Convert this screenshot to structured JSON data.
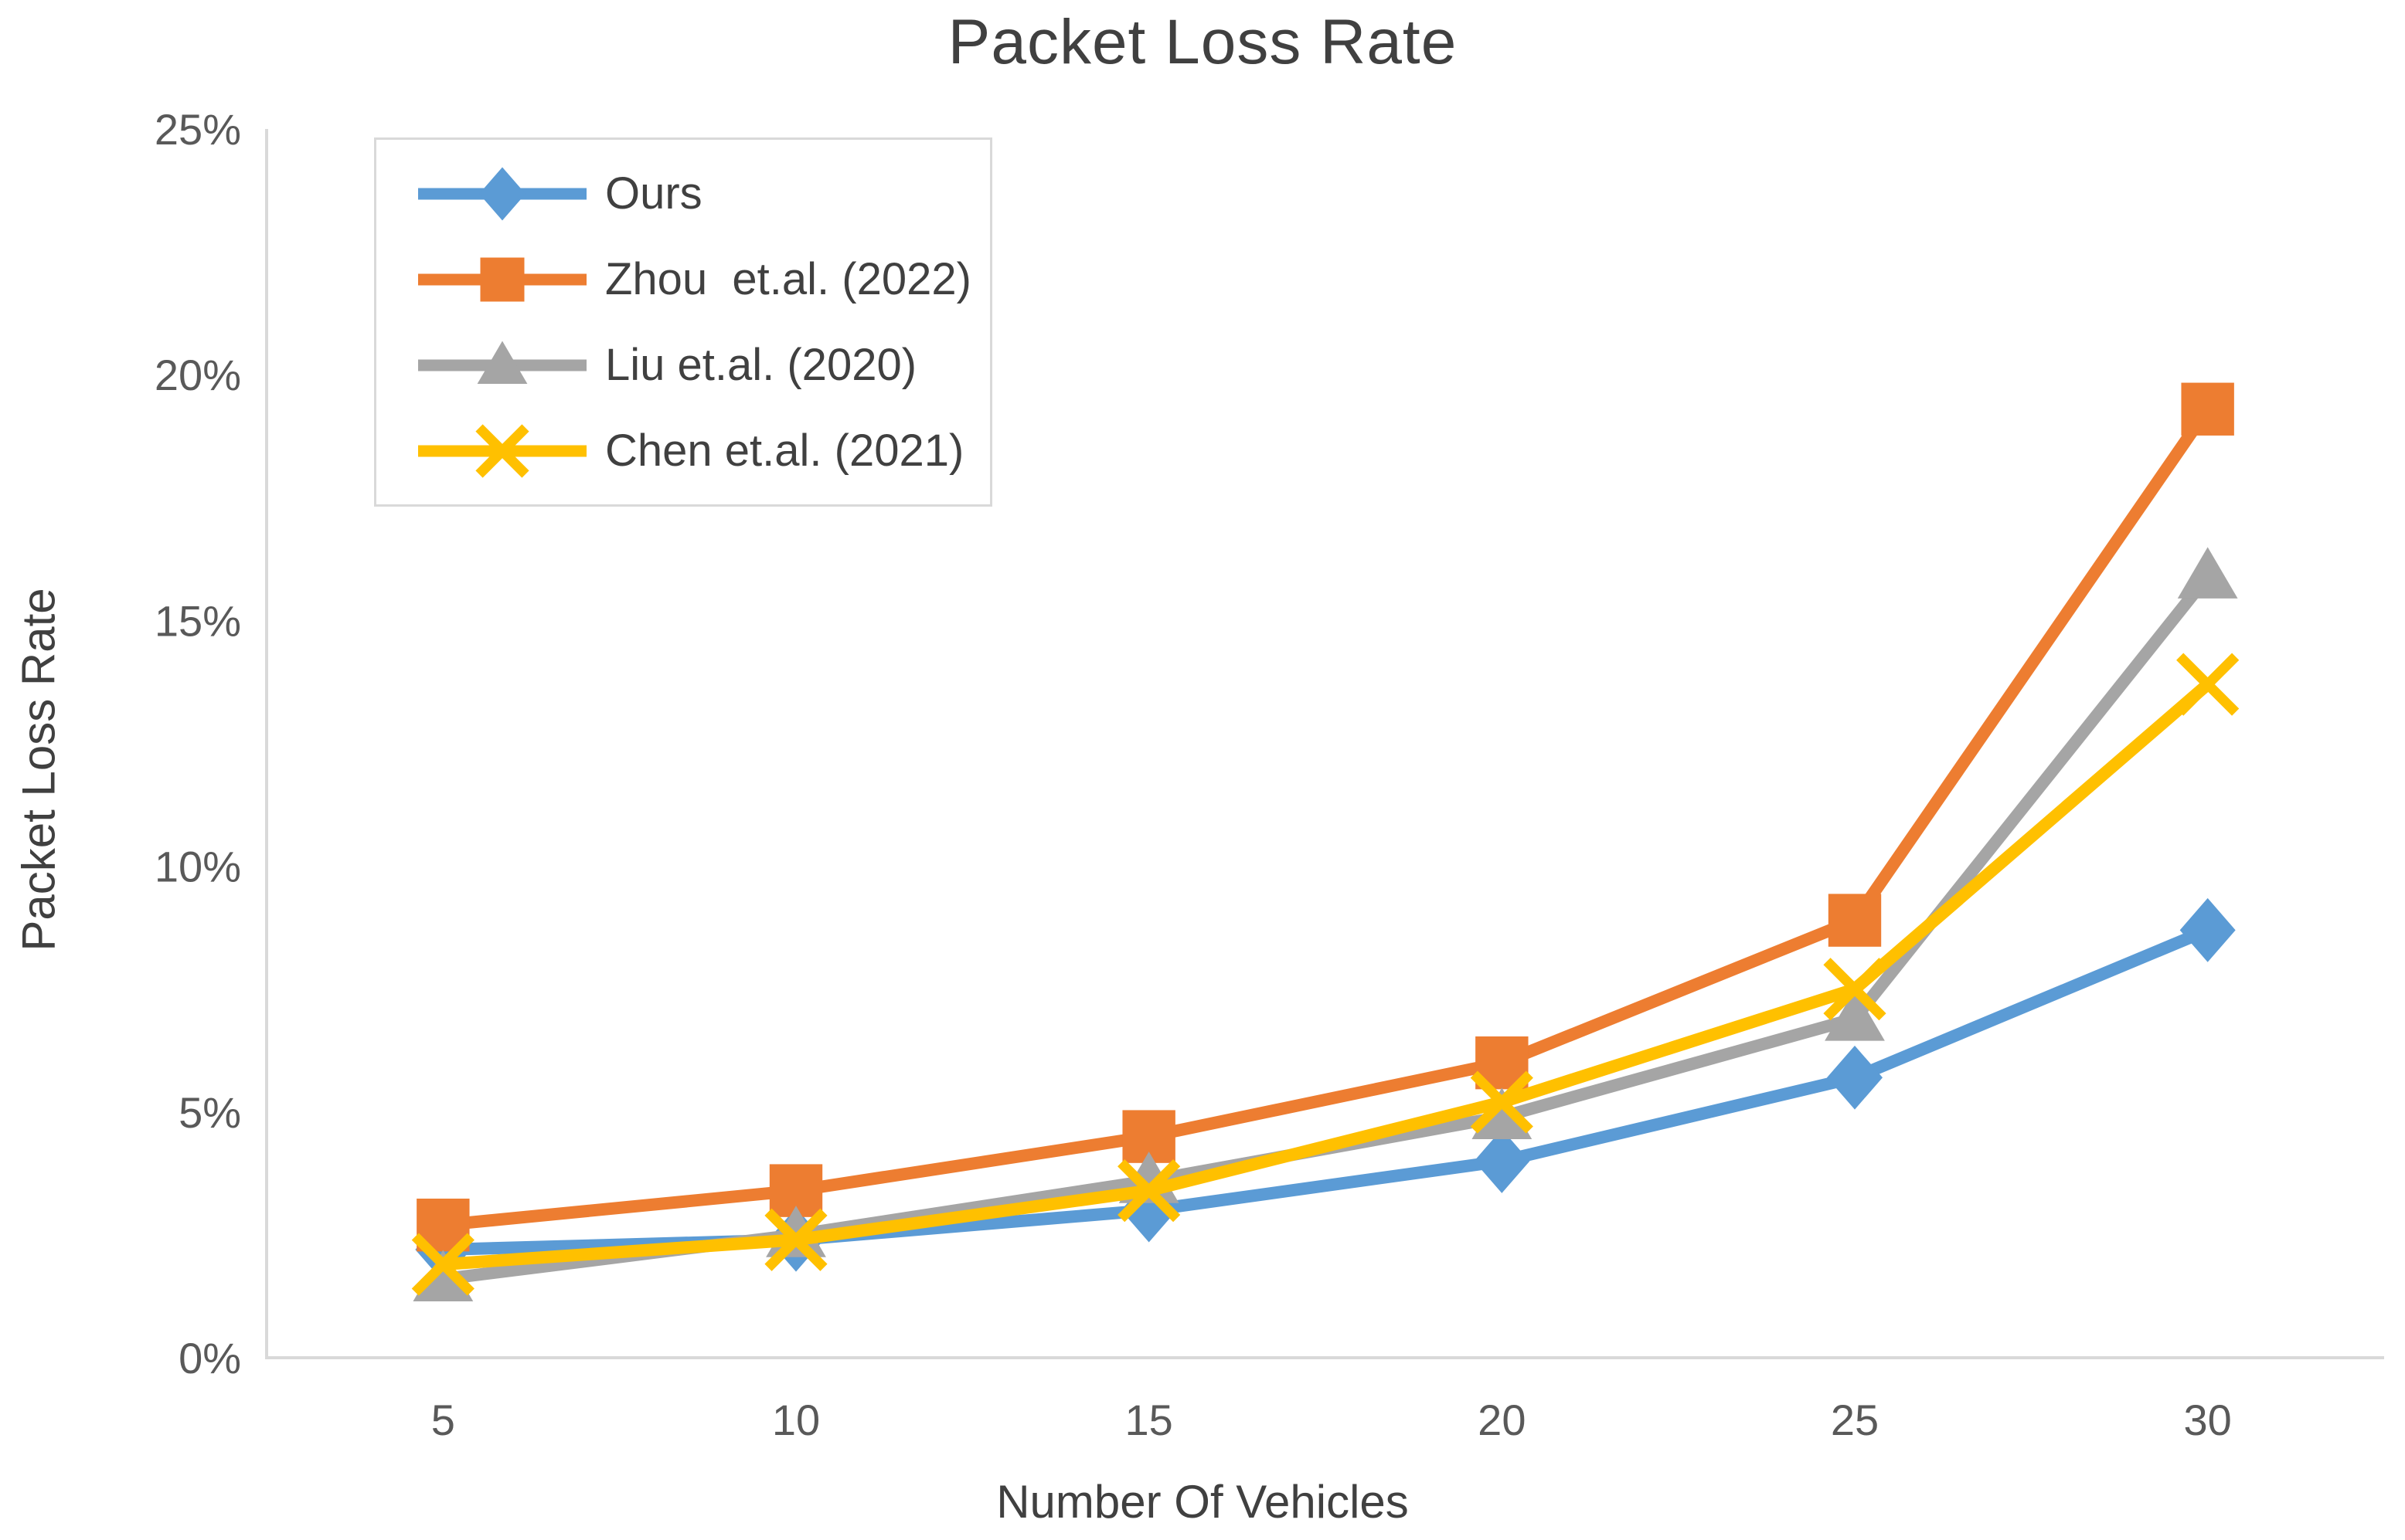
{
  "title": "Packet Loss Rate",
  "chart_data": {
    "type": "line",
    "title": "Packet Loss Rate",
    "xlabel": "Number Of Vehicles",
    "ylabel": "Packet Loss Rate",
    "categories": [
      "5",
      "10",
      "15",
      "20",
      "25",
      "30"
    ],
    "ylim": [
      0,
      25
    ],
    "y_tick_step": 5,
    "y_tick_labels": [
      "0%",
      "5%",
      "10%",
      "15%",
      "20%",
      "25%"
    ],
    "grid": false,
    "legend_position": "top-left-inside",
    "axis_color": "#d9d9d9",
    "tick_text_color": "#595959",
    "series": [
      {
        "name": "Ours",
        "color": "#5B9BD5",
        "marker": "diamond",
        "values": [
          2.2,
          2.4,
          3.0,
          4.0,
          5.7,
          8.7
        ]
      },
      {
        "name": "Zhou  et.al. (2022)",
        "color": "#ED7D31",
        "marker": "square",
        "values": [
          2.7,
          3.4,
          4.5,
          6.0,
          8.9,
          19.3
        ]
      },
      {
        "name": "Liu et.al. (2020)",
        "color": "#A5A5A5",
        "marker": "triangle",
        "values": [
          1.6,
          2.5,
          3.6,
          4.9,
          6.9,
          15.9
        ]
      },
      {
        "name": "Chen et.al. (2021)",
        "color": "#FFC000",
        "marker": "x",
        "values": [
          1.9,
          2.4,
          3.4,
          5.2,
          7.5,
          13.7
        ]
      }
    ]
  }
}
